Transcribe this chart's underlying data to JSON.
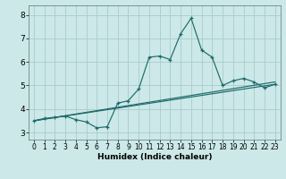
{
  "xlabel": "Humidex (Indice chaleur)",
  "xlim": [
    -0.5,
    23.5
  ],
  "ylim": [
    2.7,
    8.4
  ],
  "yticks": [
    3,
    4,
    5,
    6,
    7,
    8
  ],
  "xticks": [
    0,
    1,
    2,
    3,
    4,
    5,
    6,
    7,
    8,
    9,
    10,
    11,
    12,
    13,
    14,
    15,
    16,
    17,
    18,
    19,
    20,
    21,
    22,
    23
  ],
  "background_color": "#cce8e8",
  "grid_color": "#aacccc",
  "line_color": "#1e6b6b",
  "line1_x": [
    0,
    1,
    2,
    3,
    4,
    5,
    6,
    7,
    8,
    9,
    10,
    11,
    12,
    13,
    14,
    15,
    16,
    17,
    18,
    19,
    20,
    21,
    22,
    23
  ],
  "line1_y": [
    3.5,
    3.6,
    3.65,
    3.7,
    3.55,
    3.45,
    3.2,
    3.25,
    4.25,
    4.35,
    4.85,
    6.2,
    6.25,
    6.1,
    7.2,
    7.85,
    6.5,
    6.2,
    5.0,
    5.2,
    5.3,
    5.15,
    4.9,
    5.05
  ],
  "line2_x": [
    0,
    23
  ],
  "line2_y": [
    3.5,
    5.05
  ],
  "line3_x": [
    0,
    23
  ],
  "line3_y": [
    3.5,
    5.15
  ],
  "xlabel_fontsize": 6.5,
  "xlabel_fontweight": "bold",
  "tick_fontsize_x": 5.5,
  "tick_fontsize_y": 6.5
}
